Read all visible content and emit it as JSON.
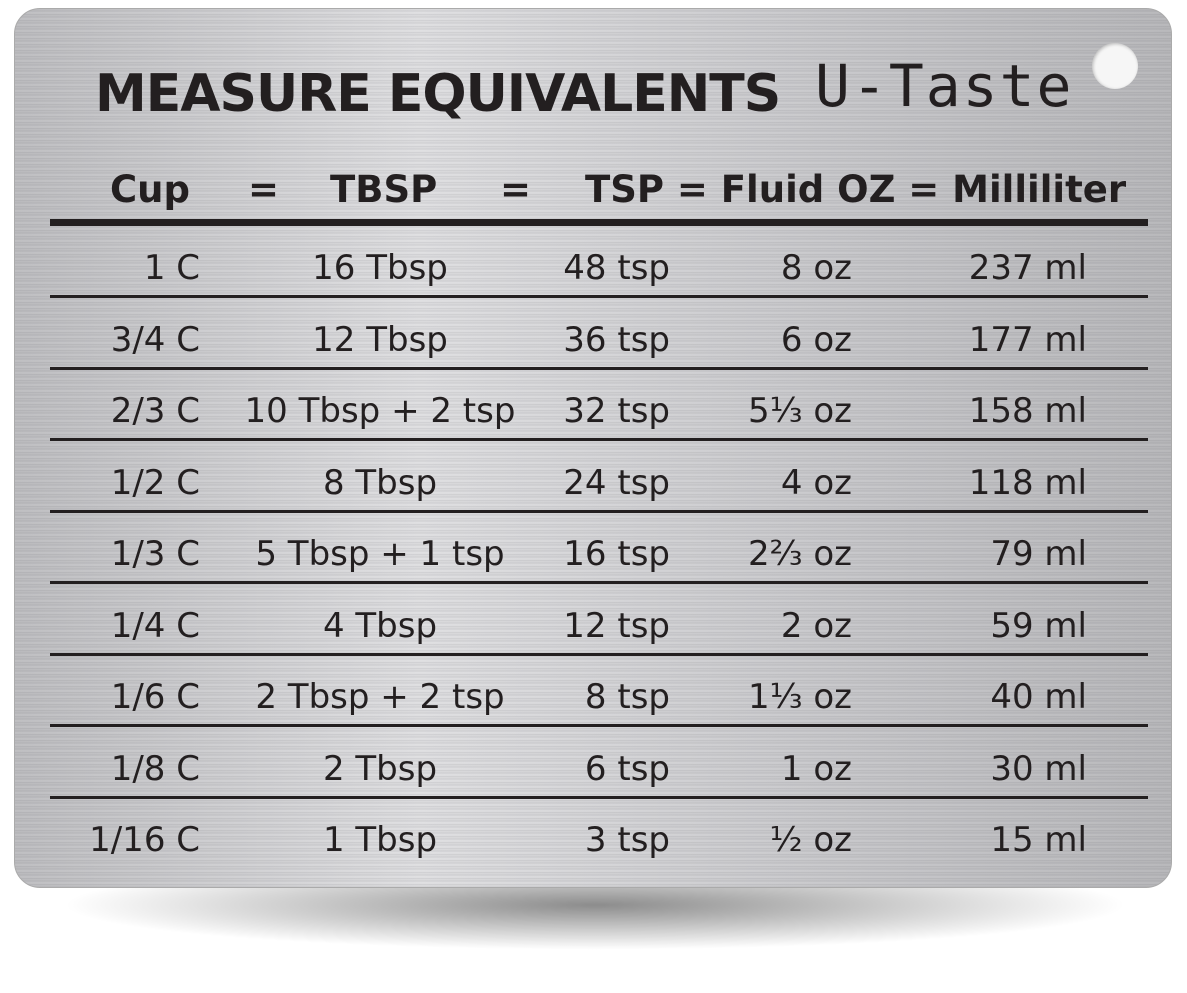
{
  "title": "MEASURE EQUIVALENTS",
  "brand": "U-Taste",
  "header": {
    "cup": "Cup",
    "eq1": "=",
    "tbsp": "TBSP",
    "eq2": "=",
    "rest": "TSP = Fluid OZ = Milliliter"
  },
  "rows": [
    [
      "1 C",
      "16 Tbsp",
      "48 tsp",
      "8 oz",
      "237 ml"
    ],
    [
      "3/4 C",
      "12 Tbsp",
      "36 tsp",
      "6 oz",
      "177 ml"
    ],
    [
      "2/3 C",
      "10 Tbsp + 2 tsp",
      "32 tsp",
      "5⅓ oz",
      "158 ml"
    ],
    [
      "1/2 C",
      "8 Tbsp",
      "24 tsp",
      "4 oz",
      "118 ml"
    ],
    [
      "1/3 C",
      "5 Tbsp + 1 tsp",
      "16 tsp",
      "2⅔ oz",
      "79 ml"
    ],
    [
      "1/4 C",
      "4 Tbsp",
      "12 tsp",
      "2 oz",
      "59 ml"
    ],
    [
      "1/6 C",
      "2 Tbsp + 2 tsp",
      "8 tsp",
      "1⅓ oz",
      "40 ml"
    ],
    [
      "1/8 C",
      "2 Tbsp",
      "6 tsp",
      "1 oz",
      "30 ml"
    ],
    [
      "1/16 C",
      "1 Tbsp",
      "3 tsp",
      "½ oz",
      "15 ml"
    ]
  ]
}
